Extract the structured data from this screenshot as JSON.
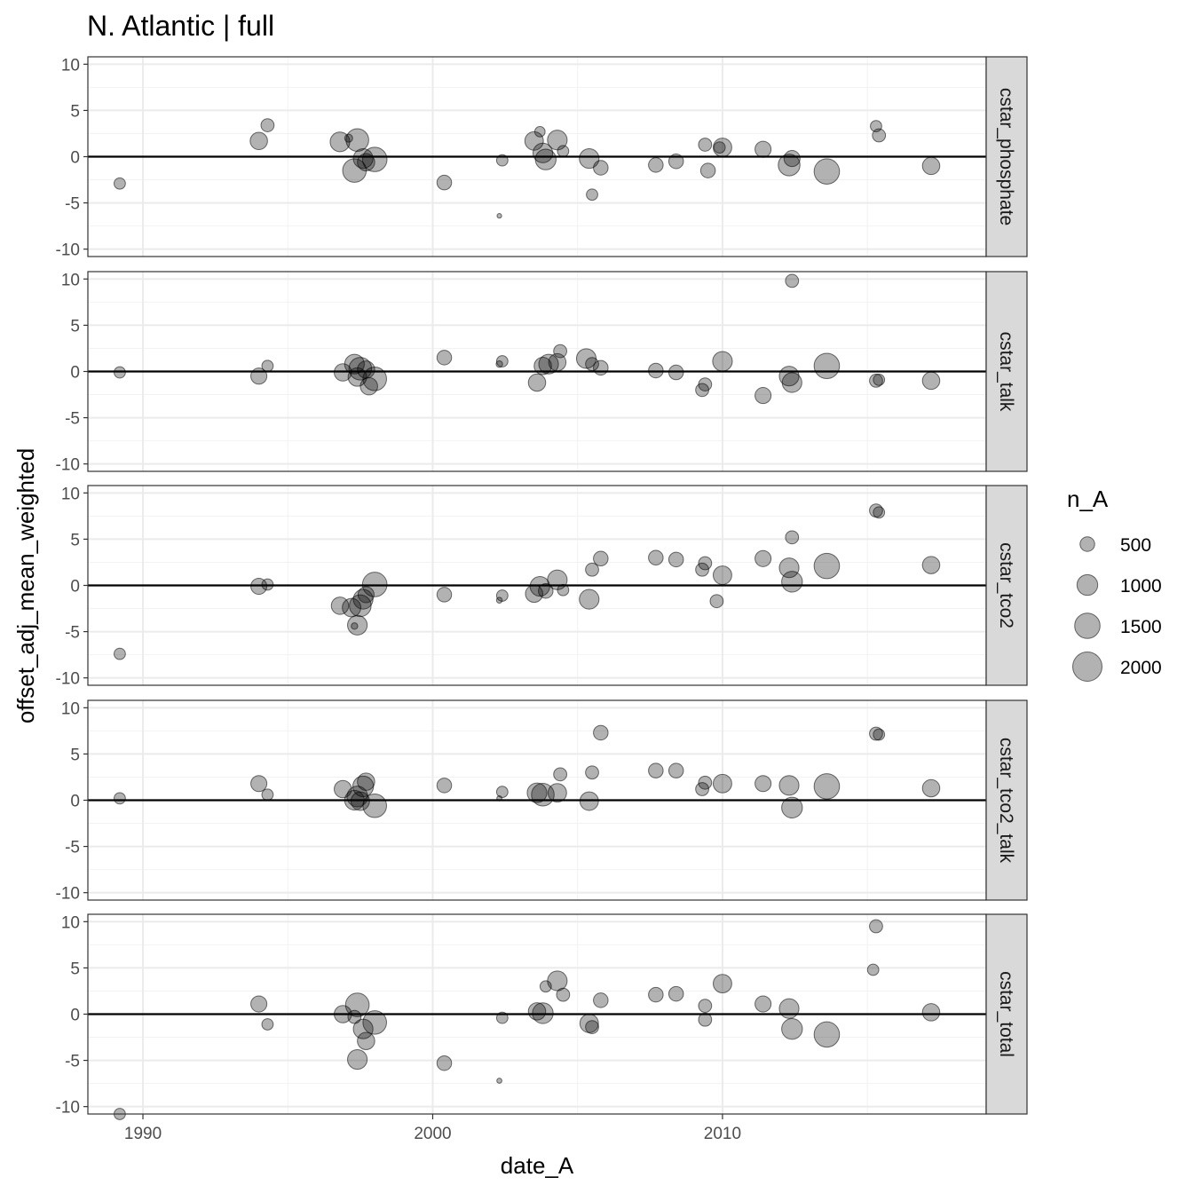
{
  "chart_data": {
    "type": "scatter",
    "title": "N. Atlantic | full",
    "xlabel": "date_A",
    "ylabel": "offset_adj_mean_weighted",
    "xlim": [
      1988.1,
      2019.1
    ],
    "ylim": [
      -10.8,
      10.8
    ],
    "x_ticks": [
      1990,
      2000,
      2010
    ],
    "y_ticks": [
      10,
      5,
      0,
      -5,
      -10
    ],
    "grid": true,
    "reference_line_y": 0,
    "point_color": "#000000",
    "point_opacity": 0.3,
    "legend": {
      "title": "n_A",
      "position": "right",
      "sizes": [
        500,
        1000,
        1500,
        2000
      ]
    },
    "panels": [
      {
        "label": "cstar_phosphate",
        "points": [
          {
            "x": 1989.2,
            "y": -2.9,
            "n": 300
          },
          {
            "x": 1994.0,
            "y": 1.7,
            "n": 700
          },
          {
            "x": 1994.3,
            "y": 3.4,
            "n": 400
          },
          {
            "x": 1996.8,
            "y": 1.6,
            "n": 900
          },
          {
            "x": 1997.1,
            "y": 2.0,
            "n": 150
          },
          {
            "x": 1997.3,
            "y": -1.5,
            "n": 1300
          },
          {
            "x": 1997.4,
            "y": 1.8,
            "n": 1200
          },
          {
            "x": 1997.6,
            "y": -0.2,
            "n": 900
          },
          {
            "x": 1997.7,
            "y": -0.6,
            "n": 700
          },
          {
            "x": 1998.0,
            "y": -0.3,
            "n": 1400
          },
          {
            "x": 2000.4,
            "y": -2.8,
            "n": 500
          },
          {
            "x": 2002.4,
            "y": -0.4,
            "n": 300
          },
          {
            "x": 2002.3,
            "y": -6.4,
            "n": 50
          },
          {
            "x": 2003.5,
            "y": 1.7,
            "n": 800
          },
          {
            "x": 2003.7,
            "y": 2.7,
            "n": 250
          },
          {
            "x": 2003.8,
            "y": 0.4,
            "n": 900
          },
          {
            "x": 2003.9,
            "y": -0.3,
            "n": 1000
          },
          {
            "x": 2004.3,
            "y": 1.8,
            "n": 900
          },
          {
            "x": 2004.5,
            "y": 0.6,
            "n": 300
          },
          {
            "x": 2005.4,
            "y": -0.2,
            "n": 900
          },
          {
            "x": 2005.5,
            "y": -4.1,
            "n": 300
          },
          {
            "x": 2005.8,
            "y": -1.2,
            "n": 500
          },
          {
            "x": 2007.7,
            "y": -0.9,
            "n": 500
          },
          {
            "x": 2008.4,
            "y": -0.5,
            "n": 500
          },
          {
            "x": 2009.4,
            "y": 1.3,
            "n": 400
          },
          {
            "x": 2009.5,
            "y": -1.5,
            "n": 500
          },
          {
            "x": 2009.9,
            "y": 1.0,
            "n": 300
          },
          {
            "x": 2010.0,
            "y": 1.0,
            "n": 800
          },
          {
            "x": 2011.4,
            "y": 0.8,
            "n": 600
          },
          {
            "x": 2012.3,
            "y": -0.9,
            "n": 1100
          },
          {
            "x": 2012.4,
            "y": -0.2,
            "n": 600
          },
          {
            "x": 2013.6,
            "y": -1.6,
            "n": 1500
          },
          {
            "x": 2015.3,
            "y": 3.3,
            "n": 300
          },
          {
            "x": 2015.4,
            "y": 2.3,
            "n": 400
          },
          {
            "x": 2017.2,
            "y": -1.0,
            "n": 700
          }
        ]
      },
      {
        "label": "cstar_talk",
        "points": [
          {
            "x": 1989.2,
            "y": -0.1,
            "n": 300
          },
          {
            "x": 1994.0,
            "y": -0.5,
            "n": 600
          },
          {
            "x": 1994.3,
            "y": 0.6,
            "n": 300
          },
          {
            "x": 1996.9,
            "y": -0.1,
            "n": 700
          },
          {
            "x": 1997.3,
            "y": 0.8,
            "n": 900
          },
          {
            "x": 1997.4,
            "y": -0.6,
            "n": 800
          },
          {
            "x": 1997.5,
            "y": 0.3,
            "n": 1200
          },
          {
            "x": 1997.7,
            "y": 0.2,
            "n": 700
          },
          {
            "x": 1997.8,
            "y": -1.6,
            "n": 700
          },
          {
            "x": 1998.0,
            "y": -0.8,
            "n": 1300
          },
          {
            "x": 2000.4,
            "y": 1.5,
            "n": 500
          },
          {
            "x": 2002.4,
            "y": 1.1,
            "n": 300
          },
          {
            "x": 2002.3,
            "y": 0.8,
            "n": 100
          },
          {
            "x": 2003.6,
            "y": -1.2,
            "n": 700
          },
          {
            "x": 2003.8,
            "y": 0.6,
            "n": 700
          },
          {
            "x": 2004.0,
            "y": 0.8,
            "n": 900
          },
          {
            "x": 2004.4,
            "y": 2.2,
            "n": 400
          },
          {
            "x": 2004.3,
            "y": 1.0,
            "n": 700
          },
          {
            "x": 2005.3,
            "y": 1.4,
            "n": 900
          },
          {
            "x": 2005.5,
            "y": 0.8,
            "n": 400
          },
          {
            "x": 2005.8,
            "y": 0.4,
            "n": 500
          },
          {
            "x": 2007.7,
            "y": 0.1,
            "n": 500
          },
          {
            "x": 2008.4,
            "y": -0.1,
            "n": 500
          },
          {
            "x": 2009.4,
            "y": -1.4,
            "n": 400
          },
          {
            "x": 2009.3,
            "y": -2.0,
            "n": 400
          },
          {
            "x": 2010.0,
            "y": 1.1,
            "n": 900
          },
          {
            "x": 2011.4,
            "y": -2.6,
            "n": 600
          },
          {
            "x": 2012.3,
            "y": -0.5,
            "n": 900
          },
          {
            "x": 2012.4,
            "y": -1.2,
            "n": 900
          },
          {
            "x": 2012.4,
            "y": 9.8,
            "n": 400
          },
          {
            "x": 2013.6,
            "y": 0.6,
            "n": 1500
          },
          {
            "x": 2015.3,
            "y": -1.0,
            "n": 400
          },
          {
            "x": 2015.4,
            "y": -0.9,
            "n": 300
          },
          {
            "x": 2017.2,
            "y": -1.0,
            "n": 700
          }
        ]
      },
      {
        "label": "cstar_tco2",
        "points": [
          {
            "x": 1989.2,
            "y": -7.4,
            "n": 300
          },
          {
            "x": 1994.0,
            "y": -0.1,
            "n": 600
          },
          {
            "x": 1994.3,
            "y": 0.1,
            "n": 300
          },
          {
            "x": 1996.8,
            "y": -2.2,
            "n": 700
          },
          {
            "x": 1997.2,
            "y": -2.4,
            "n": 800
          },
          {
            "x": 1997.4,
            "y": -4.3,
            "n": 900
          },
          {
            "x": 1997.3,
            "y": -4.4,
            "n": 100
          },
          {
            "x": 1997.5,
            "y": -2.2,
            "n": 1100
          },
          {
            "x": 1997.6,
            "y": -1.5,
            "n": 900
          },
          {
            "x": 1997.7,
            "y": -1.0,
            "n": 600
          },
          {
            "x": 1998.0,
            "y": 0.1,
            "n": 1400
          },
          {
            "x": 2000.4,
            "y": -1.0,
            "n": 500
          },
          {
            "x": 2002.4,
            "y": -1.1,
            "n": 300
          },
          {
            "x": 2002.3,
            "y": -1.6,
            "n": 80
          },
          {
            "x": 2003.5,
            "y": -0.9,
            "n": 700
          },
          {
            "x": 2003.7,
            "y": -0.1,
            "n": 900
          },
          {
            "x": 2003.9,
            "y": -0.6,
            "n": 500
          },
          {
            "x": 2004.3,
            "y": 0.6,
            "n": 900
          },
          {
            "x": 2004.5,
            "y": -0.5,
            "n": 300
          },
          {
            "x": 2005.4,
            "y": -1.5,
            "n": 900
          },
          {
            "x": 2005.5,
            "y": 1.7,
            "n": 400
          },
          {
            "x": 2005.8,
            "y": 2.9,
            "n": 500
          },
          {
            "x": 2007.7,
            "y": 3.0,
            "n": 500
          },
          {
            "x": 2008.4,
            "y": 2.8,
            "n": 500
          },
          {
            "x": 2009.4,
            "y": 2.4,
            "n": 400
          },
          {
            "x": 2009.3,
            "y": 1.7,
            "n": 400
          },
          {
            "x": 2009.8,
            "y": -1.7,
            "n": 400
          },
          {
            "x": 2010.0,
            "y": 1.1,
            "n": 800
          },
          {
            "x": 2011.4,
            "y": 2.9,
            "n": 600
          },
          {
            "x": 2012.3,
            "y": 1.9,
            "n": 900
          },
          {
            "x": 2012.4,
            "y": 0.4,
            "n": 1000
          },
          {
            "x": 2012.4,
            "y": 5.2,
            "n": 400
          },
          {
            "x": 2013.6,
            "y": 2.1,
            "n": 1500
          },
          {
            "x": 2015.3,
            "y": 8.1,
            "n": 400
          },
          {
            "x": 2015.4,
            "y": 7.9,
            "n": 300
          },
          {
            "x": 2017.2,
            "y": 2.2,
            "n": 700
          }
        ]
      },
      {
        "label": "cstar_tco2_talk",
        "points": [
          {
            "x": 1989.2,
            "y": 0.2,
            "n": 300
          },
          {
            "x": 1994.0,
            "y": 1.8,
            "n": 600
          },
          {
            "x": 1994.3,
            "y": 0.6,
            "n": 300
          },
          {
            "x": 1996.9,
            "y": 1.2,
            "n": 700
          },
          {
            "x": 1997.3,
            "y": 0.0,
            "n": 900
          },
          {
            "x": 1997.4,
            "y": 0.4,
            "n": 1000
          },
          {
            "x": 1997.5,
            "y": -0.1,
            "n": 800
          },
          {
            "x": 1997.6,
            "y": 1.5,
            "n": 1000
          },
          {
            "x": 1997.7,
            "y": 2.0,
            "n": 700
          },
          {
            "x": 1998.0,
            "y": -0.6,
            "n": 1300
          },
          {
            "x": 2000.4,
            "y": 1.6,
            "n": 500
          },
          {
            "x": 2002.4,
            "y": 0.9,
            "n": 300
          },
          {
            "x": 2002.3,
            "y": 0.2,
            "n": 60
          },
          {
            "x": 2003.6,
            "y": 0.8,
            "n": 900
          },
          {
            "x": 2003.8,
            "y": 0.6,
            "n": 1200
          },
          {
            "x": 2004.3,
            "y": 0.8,
            "n": 800
          },
          {
            "x": 2004.4,
            "y": 2.8,
            "n": 400
          },
          {
            "x": 2005.4,
            "y": -0.1,
            "n": 800
          },
          {
            "x": 2005.5,
            "y": 3.0,
            "n": 400
          },
          {
            "x": 2005.8,
            "y": 7.3,
            "n": 500
          },
          {
            "x": 2007.7,
            "y": 3.2,
            "n": 500
          },
          {
            "x": 2008.4,
            "y": 3.2,
            "n": 500
          },
          {
            "x": 2009.4,
            "y": 1.9,
            "n": 400
          },
          {
            "x": 2009.3,
            "y": 1.2,
            "n": 400
          },
          {
            "x": 2010.0,
            "y": 1.8,
            "n": 800
          },
          {
            "x": 2011.4,
            "y": 1.8,
            "n": 600
          },
          {
            "x": 2012.3,
            "y": 1.6,
            "n": 900
          },
          {
            "x": 2012.4,
            "y": -0.8,
            "n": 1000
          },
          {
            "x": 2013.6,
            "y": 1.5,
            "n": 1500
          },
          {
            "x": 2015.3,
            "y": 7.2,
            "n": 400
          },
          {
            "x": 2015.4,
            "y": 7.1,
            "n": 300
          },
          {
            "x": 2017.2,
            "y": 1.3,
            "n": 700
          }
        ]
      },
      {
        "label": "cstar_total",
        "points": [
          {
            "x": 1989.2,
            "y": -10.8,
            "n": 300
          },
          {
            "x": 1994.0,
            "y": 1.1,
            "n": 600
          },
          {
            "x": 1994.3,
            "y": -1.1,
            "n": 300
          },
          {
            "x": 1996.9,
            "y": 0.0,
            "n": 700
          },
          {
            "x": 1997.3,
            "y": -0.3,
            "n": 400
          },
          {
            "x": 1997.4,
            "y": -4.9,
            "n": 900
          },
          {
            "x": 1997.4,
            "y": 1.0,
            "n": 1300
          },
          {
            "x": 1997.6,
            "y": -1.6,
            "n": 900
          },
          {
            "x": 1997.7,
            "y": -2.9,
            "n": 700
          },
          {
            "x": 1998.0,
            "y": -0.9,
            "n": 1300
          },
          {
            "x": 2000.4,
            "y": -5.3,
            "n": 500
          },
          {
            "x": 2002.4,
            "y": -0.4,
            "n": 300
          },
          {
            "x": 2002.3,
            "y": -7.2,
            "n": 60
          },
          {
            "x": 2003.6,
            "y": 0.3,
            "n": 700
          },
          {
            "x": 2003.8,
            "y": 0.1,
            "n": 1000
          },
          {
            "x": 2003.9,
            "y": 3.0,
            "n": 300
          },
          {
            "x": 2004.3,
            "y": 3.6,
            "n": 900
          },
          {
            "x": 2004.5,
            "y": 2.1,
            "n": 400
          },
          {
            "x": 2005.4,
            "y": -1.0,
            "n": 800
          },
          {
            "x": 2005.5,
            "y": -1.4,
            "n": 400
          },
          {
            "x": 2005.8,
            "y": 1.5,
            "n": 500
          },
          {
            "x": 2007.7,
            "y": 2.1,
            "n": 500
          },
          {
            "x": 2008.4,
            "y": 2.2,
            "n": 500
          },
          {
            "x": 2009.4,
            "y": 0.9,
            "n": 400
          },
          {
            "x": 2009.4,
            "y": -0.6,
            "n": 400
          },
          {
            "x": 2010.0,
            "y": 3.3,
            "n": 800
          },
          {
            "x": 2011.4,
            "y": 1.1,
            "n": 600
          },
          {
            "x": 2012.3,
            "y": 0.6,
            "n": 900
          },
          {
            "x": 2012.4,
            "y": -1.6,
            "n": 1000
          },
          {
            "x": 2013.6,
            "y": -2.2,
            "n": 1500
          },
          {
            "x": 2015.3,
            "y": 9.5,
            "n": 400
          },
          {
            "x": 2015.2,
            "y": 4.8,
            "n": 300
          },
          {
            "x": 2017.2,
            "y": 0.2,
            "n": 700
          }
        ]
      }
    ]
  }
}
